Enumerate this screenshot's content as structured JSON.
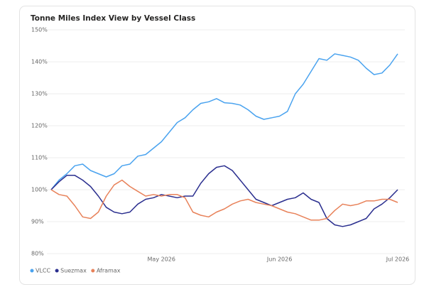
{
  "chart_data": {
    "type": "line",
    "title": "Tonne Miles Index View by Vessel Class",
    "categories": [
      null,
      null,
      null,
      null,
      null,
      null,
      null,
      null,
      null,
      null,
      null,
      null,
      null,
      null,
      "May 2026",
      null,
      null,
      null,
      null,
      null,
      null,
      null,
      null,
      null,
      null,
      null,
      null,
      null,
      null,
      "Jun 2026",
      null,
      null,
      null,
      null,
      null,
      null,
      null,
      null,
      null,
      null,
      null,
      null,
      null,
      null,
      "Jul 2026"
    ],
    "series": [
      {
        "name": "VLCC",
        "color": "#4aa3ef",
        "values": [
          100,
          103,
          105,
          107.5,
          108,
          106,
          105,
          104,
          105,
          107.5,
          108,
          110.5,
          111,
          113,
          115,
          118,
          121,
          122.5,
          125,
          127,
          127.5,
          128.5,
          127.2,
          127,
          126.5,
          125,
          123,
          122,
          122.5,
          123,
          124.5,
          130,
          133,
          137,
          141,
          140.5,
          142.5,
          142,
          141.5,
          140.5,
          138,
          136,
          136.5,
          139,
          142.5
        ]
      },
      {
        "name": "Suezmax",
        "color": "#2b2f8f",
        "values": [
          100,
          102.5,
          104.5,
          104.5,
          103,
          101,
          98,
          94.5,
          93,
          92.5,
          93,
          95.5,
          97,
          97.5,
          98.5,
          98,
          97.5,
          98,
          98,
          102,
          105,
          107,
          107.5,
          106,
          103,
          100,
          97,
          96,
          95,
          96,
          97,
          97.5,
          99,
          97,
          96,
          91,
          89,
          88.5,
          89,
          90,
          91,
          94,
          95.5,
          97.5,
          100
        ]
      },
      {
        "name": "Aframax",
        "color": "#e8825a",
        "values": [
          100,
          98.5,
          98,
          95,
          91.5,
          91,
          93,
          98,
          101.5,
          103,
          101,
          99.5,
          98,
          98.5,
          98,
          98.5,
          98.5,
          97.5,
          93,
          92,
          91.5,
          93,
          94,
          95.5,
          96.5,
          97,
          96,
          95.5,
          95,
          94,
          93,
          92.5,
          91.5,
          90.5,
          90.5,
          91,
          93.5,
          95.5,
          95,
          95.5,
          96.5,
          96.5,
          97,
          97,
          96
        ]
      }
    ],
    "ylim": [
      80,
      150
    ],
    "yticks": [
      {
        "value": 80,
        "label": "80%"
      },
      {
        "value": 90,
        "label": "90%"
      },
      {
        "value": 100,
        "label": "100%"
      },
      {
        "value": 110,
        "label": "110%"
      },
      {
        "value": 120,
        "label": "120%"
      },
      {
        "value": 130,
        "label": "130%"
      },
      {
        "value": 140,
        "label": "140%"
      },
      {
        "value": 150,
        "label": "150%"
      }
    ],
    "grid": true,
    "legend": "bottom-left"
  }
}
